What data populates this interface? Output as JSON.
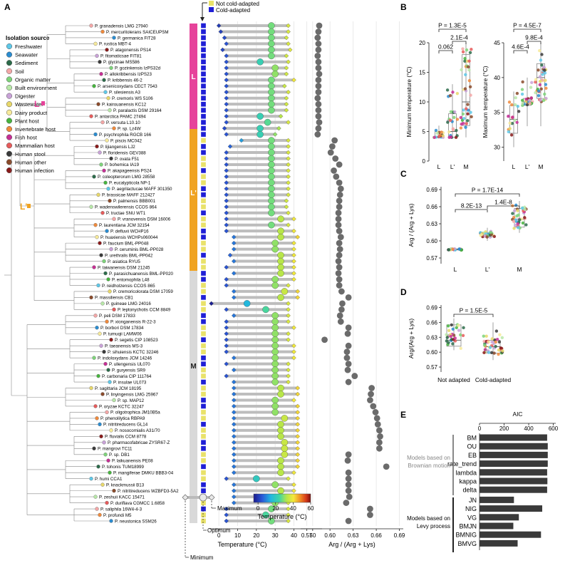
{
  "panel_labels": [
    "A",
    "B",
    "C",
    "D",
    "E"
  ],
  "legend": {
    "title": "Isolation source",
    "items": [
      {
        "label": "Freshwater",
        "color": "#5ec8e8"
      },
      {
        "label": "Seawater",
        "color": "#2a8cd0"
      },
      {
        "label": "Sediment",
        "color": "#2c6b4a"
      },
      {
        "label": "Soil",
        "color": "#f4a7a7"
      },
      {
        "label": "Organic matter",
        "color": "#7ed37a"
      },
      {
        "label": "Built environment",
        "color": "#b8e8a8"
      },
      {
        "label": "Digester",
        "color": "#c9a2d8"
      },
      {
        "label": "Wastewater",
        "color": "#e8d86a"
      },
      {
        "label": "Dairy product",
        "color": "#f7ea9a"
      },
      {
        "label": "Plant host",
        "color": "#47b43e"
      },
      {
        "label": "Invertebrate host",
        "color": "#f08a3c"
      },
      {
        "label": "Fish host",
        "color": "#c62f94"
      },
      {
        "label": "Mammalian host",
        "color": "#e65b5b"
      },
      {
        "label": "Human stool",
        "color": "#3a3a3a"
      },
      {
        "label": "Human other",
        "color": "#8a4a2a"
      },
      {
        "label": "Human infection",
        "color": "#8a1a1a"
      }
    ]
  },
  "clade_labels": [
    "L",
    "L'",
    "M"
  ],
  "clade_colors": {
    "L": "#e6439a",
    "Lp": "#f0a321",
    "M": "#d9d9d9"
  },
  "adapt_legend": {
    "not": "Not cold-adapted",
    "cold": "Cold-adapted",
    "not_color": "#e9e26a",
    "cold_color": "#1f1fd6"
  },
  "species": [
    {
      "name": "P. granadensis LMG 27940",
      "min": 0,
      "opt": 28,
      "max": 37,
      "arg": 0.586
    },
    {
      "name": "P. mercuritolerans SAICEUPSM",
      "min": 1,
      "opt": 28,
      "max": 37,
      "arg": 0.585
    },
    {
      "name": "P. germanica FIT28",
      "min": 3,
      "opt": 28,
      "max": 36,
      "arg": 0.584
    },
    {
      "name": "P. rustica MBT-4",
      "min": 4,
      "opt": 28,
      "max": 37,
      "arg": 0.585
    },
    {
      "name": "P. atagonensis PS14",
      "min": 2,
      "opt": 28,
      "max": 38,
      "arg": 0.585
    },
    {
      "name": "P. fitomaticsae FIT81",
      "min": 4,
      "opt": 28,
      "max": 36,
      "arg": 0.584
    },
    {
      "name": "P. glycinae MS586",
      "min": 4,
      "opt": 22,
      "max": 37,
      "arg": 0.585
    },
    {
      "name": "P. gozinkensis IzPS32d",
      "min": 4,
      "opt": 30,
      "max": 36,
      "arg": 0.585
    },
    {
      "name": "P. allokribbensis IzPS23",
      "min": 4,
      "opt": 30,
      "max": 36,
      "arg": 0.586
    },
    {
      "name": "P. kribbensis 46-2",
      "min": 4,
      "opt": 28,
      "max": 40,
      "arg": 0.585
    },
    {
      "name": "P. arsenicoxydans CECT 7543",
      "min": 4,
      "opt": 28,
      "max": 35,
      "arg": 0.585
    },
    {
      "name": "P. silesiensis A3",
      "min": 4,
      "opt": 28,
      "max": 37,
      "arg": 0.585
    },
    {
      "name": "P. cremoris WS 5106",
      "min": 4,
      "opt": 28,
      "max": 36,
      "arg": 0.584
    },
    {
      "name": "P. kairouanensis KC12",
      "min": 4,
      "opt": 28,
      "max": 36,
      "arg": 0.585
    },
    {
      "name": "P. paralactis DSM 29164",
      "min": 4,
      "opt": 28,
      "max": 36,
      "arg": 0.585
    },
    {
      "name": "P. antarctica PAMC 27494",
      "min": 4,
      "opt": 22,
      "max": 33,
      "arg": 0.585
    },
    {
      "name": "P. versuta L10.10",
      "min": 4,
      "opt": 26,
      "max": 37,
      "arg": 0.586
    },
    {
      "name": "P. sp. Lz4W",
      "min": 3,
      "opt": 22,
      "max": 32,
      "arg": 0.585
    },
    {
      "name": "P. psychrophila RGCB 166",
      "min": 4,
      "opt": 22,
      "max": 30,
      "arg": 0.584
    },
    {
      "name": "P. piscis MC042",
      "min": 12,
      "opt": 28,
      "max": 37,
      "arg": 0.606
    },
    {
      "name": "P. lijiangensis LJ2",
      "min": 6,
      "opt": 28,
      "max": 37,
      "arg": 0.603
    },
    {
      "name": "P. floridensis GEV388",
      "min": 4,
      "opt": 28,
      "max": 37,
      "arg": 0.601
    },
    {
      "name": "P. ovata F51",
      "min": 4,
      "opt": 28,
      "max": 37,
      "arg": 0.607
    },
    {
      "name": "P. bohemica IA19",
      "min": 4,
      "opt": 28,
      "max": 37,
      "arg": 0.612
    },
    {
      "name": "P. akapageensis PS24",
      "min": 4,
      "opt": 28,
      "max": 37,
      "arg": 0.605
    },
    {
      "name": "P. coleopterorum LMG 28558",
      "min": 4,
      "opt": 28,
      "max": 37,
      "arg": 0.608
    },
    {
      "name": "P. eucalypticola NP-1",
      "min": 4,
      "opt": 28,
      "max": 37,
      "arg": 0.612
    },
    {
      "name": "P. aegrilactucae MAFF 301350",
      "min": 4,
      "opt": 28,
      "max": 37,
      "arg": 0.614
    },
    {
      "name": "P. brassicae MAFF 212427",
      "min": 4,
      "opt": 28,
      "max": 37,
      "arg": 0.613
    },
    {
      "name": "P. palmensis BBB001",
      "min": 4,
      "opt": 28,
      "max": 36,
      "arg": 0.612
    },
    {
      "name": "P. wadenswilerensis CCOS 864",
      "min": 4,
      "opt": 28,
      "max": 36,
      "arg": 0.612
    },
    {
      "name": "P. tructae SNU WT1",
      "min": 4,
      "opt": 28,
      "max": 37,
      "arg": 0.611
    },
    {
      "name": "P. vranovensis DSM 16006",
      "min": 4,
      "opt": 33,
      "max": 40,
      "arg": 0.611
    },
    {
      "name": "P. laurentiana JCM 32154",
      "min": 4,
      "opt": 28,
      "max": 37,
      "arg": 0.611
    },
    {
      "name": "P. defluvii WCHP16",
      "min": 4,
      "opt": 33,
      "max": 40,
      "arg": 0.612
    },
    {
      "name": "P. huaxiensis WCHPs060044",
      "min": 8,
      "opt": 33,
      "max": 42,
      "arg": 0.614
    },
    {
      "name": "P. faucium BML-PP048",
      "min": 8,
      "opt": 30,
      "max": 40,
      "arg": 0.612
    },
    {
      "name": "P. ceruminis BML-PP028",
      "min": 8,
      "opt": 30,
      "max": 40,
      "arg": 0.613
    },
    {
      "name": "P. urethralis BML-PP042",
      "min": 6,
      "opt": 33,
      "max": 40,
      "arg": 0.612
    },
    {
      "name": "P. asiatica RYU5",
      "min": 8,
      "opt": 33,
      "max": 40,
      "arg": 0.611
    },
    {
      "name": "P. taiwanensis DSM 21245",
      "min": 4,
      "opt": 33,
      "max": 40,
      "arg": 0.612
    },
    {
      "name": "P. parasichuanensis BML-PP020",
      "min": 8,
      "opt": 33,
      "max": 40,
      "arg": 0.611
    },
    {
      "name": "P. entomophila L48",
      "min": 4,
      "opt": 30,
      "max": 40,
      "arg": 0.612
    },
    {
      "name": "P. reidholzensis CCOS 865",
      "min": 4,
      "opt": 30,
      "max": 37,
      "arg": 0.612
    },
    {
      "name": "P. cremoricolorata DSM 17059",
      "min": 8,
      "opt": 35,
      "max": 42,
      "arg": 0.615
    },
    {
      "name": "P. massiliensis CB1",
      "min": 8,
      "opt": 33,
      "max": 42,
      "arg": 0.624
    },
    {
      "name": "P. guineae LMG 24016",
      "min": -4,
      "opt": 15,
      "max": 37,
      "arg": 0.616
    },
    {
      "name": "P. leptonychotis CCM 8849",
      "min": 4,
      "opt": 25,
      "max": 37,
      "arg": 0.615
    },
    {
      "name": "P. peli DSM 17833",
      "min": 8,
      "opt": 30,
      "max": 37,
      "arg": 0.613
    },
    {
      "name": "P. xionganensis R-22-3",
      "min": 4,
      "opt": 30,
      "max": 37,
      "arg": 0.614
    },
    {
      "name": "P. borbori DSM 17834",
      "min": 4,
      "opt": 30,
      "max": 40,
      "arg": 0.624
    },
    {
      "name": "P. tumuqii LAMW06",
      "min": 4,
      "opt": 30,
      "max": 37,
      "arg": 0.623
    },
    {
      "name": "P. segetis CIP 108523",
      "min": 4,
      "opt": 30,
      "max": 37,
      "arg": 0.593
    },
    {
      "name": "P. taeanensis MS-3",
      "min": 4,
      "opt": 30,
      "max": 40,
      "arg": 0.624
    },
    {
      "name": "P. sihuiensis KCTC 32246",
      "min": 4,
      "opt": 30,
      "max": 40,
      "arg": 0.622
    },
    {
      "name": "P. indoloxydans JCM 14246",
      "min": 8,
      "opt": 30,
      "max": 40,
      "arg": 0.622
    },
    {
      "name": "P. ullengensis UL070",
      "min": 4,
      "opt": 30,
      "max": 37,
      "arg": 0.624
    },
    {
      "name": "P. guryensis SR9",
      "min": 8,
      "opt": 30,
      "max": 37,
      "arg": 0.623
    },
    {
      "name": "P. carbonaria CIP 111764",
      "min": 4,
      "opt": 30,
      "max": 37,
      "arg": 0.632
    },
    {
      "name": "P. insulae UL073",
      "min": 8,
      "opt": 30,
      "max": 37,
      "arg": 0.624
    },
    {
      "name": "P. sagittaria JCM 18195",
      "min": 8,
      "opt": 33,
      "max": 42,
      "arg": 0.654
    },
    {
      "name": "P. linyingensis LMG 25967",
      "min": 8,
      "opt": 33,
      "max": 42,
      "arg": 0.653
    },
    {
      "name": "P. sp. MAP12",
      "min": 8,
      "opt": 30,
      "max": 40,
      "arg": 0.652
    },
    {
      "name": "P. oryzae KCTC 32247",
      "min": 8,
      "opt": 30,
      "max": 42,
      "arg": 0.656
    },
    {
      "name": "P. oligotrophica JM10B5a",
      "min": 8,
      "opt": 30,
      "max": 42,
      "arg": 0.659
    },
    {
      "name": "P. phenolilytica RBPA9",
      "min": 8,
      "opt": 35,
      "max": 42,
      "arg": 0.661
    },
    {
      "name": "P. nitritireducens GL14",
      "min": 8,
      "opt": 33,
      "max": 42,
      "arg": 0.662
    },
    {
      "name": "P. nosocomialis A31/70",
      "min": 8,
      "opt": 33,
      "max": 42,
      "arg": 0.664
    },
    {
      "name": "P. fluvialis CCM 8778",
      "min": 8,
      "opt": 33,
      "max": 42,
      "arg": 0.665
    },
    {
      "name": "P. pharmacofabricae ZYSR67-Z",
      "min": 8,
      "opt": 35,
      "max": 42,
      "arg": 0.664
    },
    {
      "name": "P. mangrovi TC11",
      "min": 8,
      "opt": 35,
      "max": 42,
      "arg": 0.664
    },
    {
      "name": "P. sp. DB1",
      "min": 8,
      "opt": 35,
      "max": 42,
      "arg": 0.624
    },
    {
      "name": "P. laikuanensis PE08",
      "min": 8,
      "opt": 33,
      "max": 42,
      "arg": 0.623
    },
    {
      "name": "P. tohonis TUM18999",
      "min": 8,
      "opt": 33,
      "max": 42,
      "arg": 0.673
    },
    {
      "name": "P. mangiferae DMKU BBB3-04",
      "min": 8,
      "opt": 33,
      "max": 40,
      "arg": 0.624
    },
    {
      "name": "P. humi CCA1",
      "min": 4,
      "opt": 20,
      "max": 37,
      "arg": 0.624
    },
    {
      "name": "P. knackmussii B13",
      "min": 8,
      "opt": 30,
      "max": 40,
      "arg": 0.624
    },
    {
      "name": "P. nitritireducens WZBFD3-5A2",
      "min": 8,
      "opt": 33,
      "max": 40,
      "arg": 0.624
    },
    {
      "name": "P. zeshuii KACC 15471",
      "min": 8,
      "opt": 33,
      "max": 40,
      "arg": 0.625
    },
    {
      "name": "P. duriflava CGMCC 1.6858",
      "min": 8,
      "opt": 30,
      "max": 37,
      "arg": 0.621
    },
    {
      "name": "P. saliphila 16W4-4-3",
      "min": 4,
      "opt": 28,
      "max": 37,
      "arg": 0.652
    },
    {
      "name": "P. profundi M5",
      "min": 4,
      "opt": 25,
      "max": 37,
      "arg": 0.652
    },
    {
      "name": "P. neustonica SSM26",
      "min": 4,
      "opt": 28,
      "max": 37,
      "arg": 0.624
    }
  ],
  "axis_temp": {
    "label": "Temperature (°C)",
    "ticks": [
      "0",
      "10",
      "20",
      "30",
      "40",
      "50"
    ]
  },
  "axis_arg": {
    "label": "Arg / (Arg + Lys)",
    "ticks": [
      "0.57",
      "0.60",
      "0.63",
      "0.66",
      "0.69"
    ]
  },
  "colorbar": {
    "label": "Temperature (°C)",
    "ticks": [
      "0",
      "20",
      "40",
      "60"
    ]
  },
  "schematic": {
    "min": "Minimum",
    "opt": "Optimum",
    "max": "Maximum"
  },
  "chart_data": [
    {
      "panel": "B-left",
      "type": "scatter",
      "ylabel": "Minimum temperature (°C)",
      "categories": [
        "L",
        "L'",
        "M"
      ],
      "yticks": [
        "0",
        "5",
        "10",
        "15",
        "20"
      ],
      "ylim": [
        0,
        20
      ],
      "box": [
        [
          4,
          4,
          4,
          5,
          6
        ],
        [
          4,
          4,
          5,
          8,
          13
        ],
        [
          4,
          6,
          10,
          18,
          20
        ]
      ],
      "pvalues": [
        "P = 1.3E-5",
        "0.062",
        "2.1E-4"
      ]
    },
    {
      "panel": "B-right",
      "type": "scatter",
      "ylabel": "Maximum temperature (°C)",
      "categories": [
        "L",
        "L'",
        "M"
      ],
      "yticks": [
        "30",
        "35",
        "40",
        "45"
      ],
      "ylim": [
        28,
        45
      ],
      "box": [
        [
          30,
          32,
          34,
          36,
          38
        ],
        [
          33,
          36,
          36.5,
          37,
          40
        ],
        [
          33,
          37,
          40,
          42,
          45
        ]
      ],
      "pvalues": [
        "P = 4.5E-7",
        "4.6E-4",
        "9.8E-4"
      ]
    },
    {
      "panel": "C",
      "type": "scatter",
      "ylabel": "Arg / (Arg + Lys)",
      "categories": [
        "L",
        "L'",
        "M"
      ],
      "yticks": [
        "0.57",
        "0.60",
        "0.63",
        "0.66",
        "0.69"
      ],
      "ylim": [
        0.56,
        0.695
      ],
      "box": [
        [
          0.583,
          0.584,
          0.585,
          0.586,
          0.587
        ],
        [
          0.6,
          0.607,
          0.611,
          0.614,
          0.623
        ],
        [
          0.614,
          0.624,
          0.638,
          0.657,
          0.67
        ]
      ],
      "pvalues": [
        "P = 1.7E-14",
        "8.2E-13",
        "1.4E-8"
      ]
    },
    {
      "panel": "D",
      "type": "scatter",
      "ylabel": "Arg/(Arg + Lys)",
      "categories": [
        "Not adapted",
        "Cold-adapted"
      ],
      "yticks": [
        "0.57",
        "0.60",
        "0.63",
        "0.66",
        "0.69"
      ],
      "ylim": [
        0.56,
        0.695
      ],
      "box": [
        [
          0.604,
          0.612,
          0.624,
          0.655,
          0.668
        ],
        [
          0.584,
          0.598,
          0.611,
          0.624,
          0.66
        ]
      ],
      "pvalues": [
        "P = 1.5E-5"
      ]
    },
    {
      "panel": "E",
      "type": "bar",
      "title": "AIC",
      "xticks": [
        "0",
        "200",
        "400",
        "600"
      ],
      "xlim": [
        0,
        620
      ],
      "categories": [
        "BM",
        "OU",
        "EB",
        "rate_trend",
        "lambda",
        "kappa",
        "delta",
        "JN",
        "NIG",
        "VG",
        "BMJN",
        "BMNIG",
        "BMVG"
      ],
      "values": [
        550,
        555,
        555,
        555,
        550,
        552,
        550,
        280,
        510,
        320,
        275,
        500,
        310
      ],
      "groups": [
        "Models based on Brownian motion",
        "Models based on Levy process"
      ]
    }
  ]
}
